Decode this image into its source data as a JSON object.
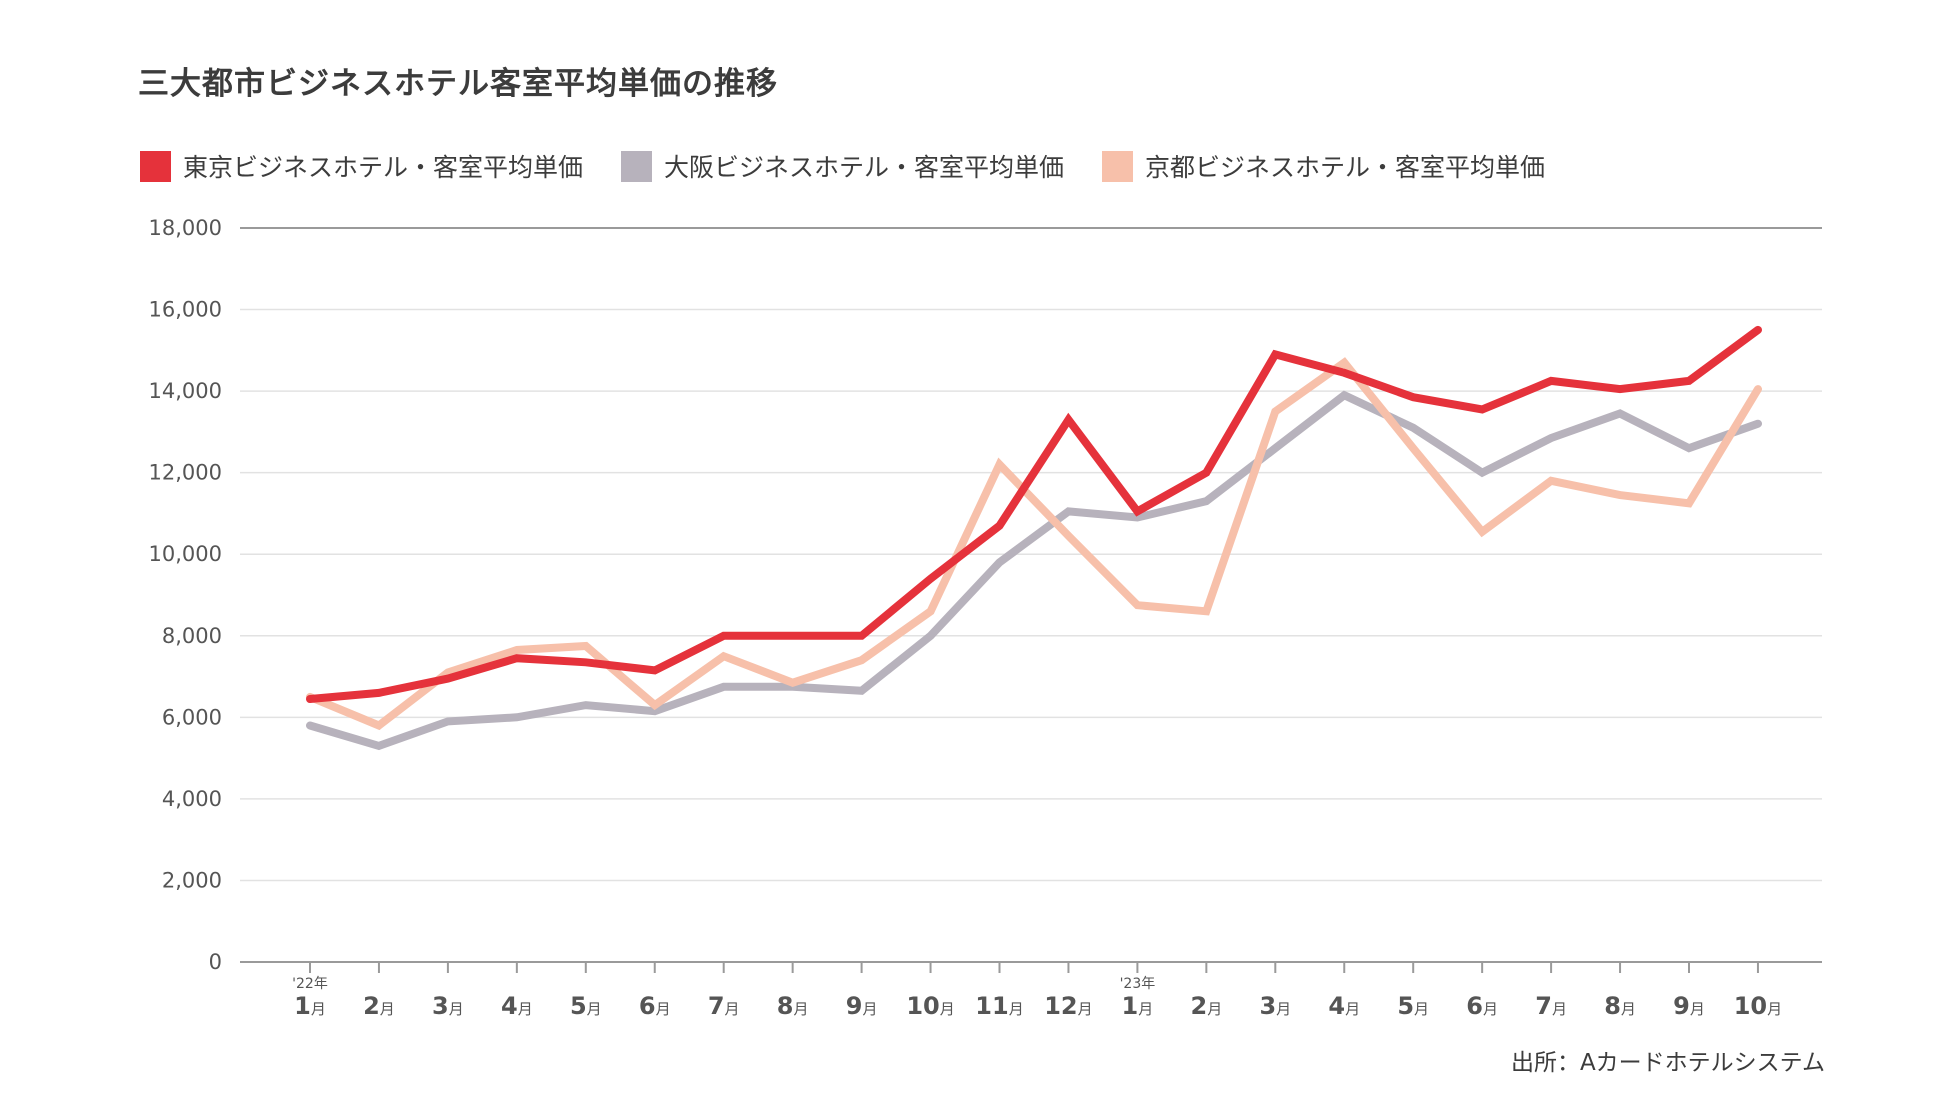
{
  "title": "三大都市ビジネスホテル客室平均単価の推移",
  "source": "出所：Aカードホテルシステム",
  "chart_data": {
    "type": "line",
    "title": "三大都市ビジネスホテル客室平均単価の推移",
    "ylim": [
      0,
      18000
    ],
    "yticks": [
      "0",
      "2,000",
      "4,000",
      "6,000",
      "8,000",
      "10,000",
      "12,000",
      "14,000",
      "16,000",
      "18,000"
    ],
    "legend_position": "top-left",
    "categories": [
      {
        "year": "'22年",
        "num": "1",
        "unit": "月"
      },
      {
        "year": "",
        "num": "2",
        "unit": "月"
      },
      {
        "year": "",
        "num": "3",
        "unit": "月"
      },
      {
        "year": "",
        "num": "4",
        "unit": "月"
      },
      {
        "year": "",
        "num": "5",
        "unit": "月"
      },
      {
        "year": "",
        "num": "6",
        "unit": "月"
      },
      {
        "year": "",
        "num": "7",
        "unit": "月"
      },
      {
        "year": "",
        "num": "8",
        "unit": "月"
      },
      {
        "year": "",
        "num": "9",
        "unit": "月"
      },
      {
        "year": "",
        "num": "10",
        "unit": "月"
      },
      {
        "year": "",
        "num": "11",
        "unit": "月"
      },
      {
        "year": "",
        "num": "12",
        "unit": "月"
      },
      {
        "year": "'23年",
        "num": "1",
        "unit": "月"
      },
      {
        "year": "",
        "num": "2",
        "unit": "月"
      },
      {
        "year": "",
        "num": "3",
        "unit": "月"
      },
      {
        "year": "",
        "num": "4",
        "unit": "月"
      },
      {
        "year": "",
        "num": "5",
        "unit": "月"
      },
      {
        "year": "",
        "num": "6",
        "unit": "月"
      },
      {
        "year": "",
        "num": "7",
        "unit": "月"
      },
      {
        "year": "",
        "num": "8",
        "unit": "月"
      },
      {
        "year": "",
        "num": "9",
        "unit": "月"
      },
      {
        "year": "",
        "num": "10",
        "unit": "月"
      }
    ],
    "series": [
      {
        "name": "大阪ビジネスホテル・客室平均単価",
        "color": "#b7b2bc",
        "values": [
          5800,
          5300,
          5900,
          6000,
          6300,
          6150,
          6750,
          6750,
          6650,
          8000,
          9800,
          11050,
          10900,
          11300,
          12600,
          13900,
          13100,
          12000,
          12850,
          13450,
          12600,
          13200
        ]
      },
      {
        "name": "京都ビジネスホテル・客室平均単価",
        "color": "#f7c0aa",
        "values": [
          6500,
          5800,
          7100,
          7650,
          7750,
          6300,
          7500,
          6850,
          7400,
          8600,
          12200,
          10450,
          8750,
          8600,
          13500,
          14700,
          12600,
          10550,
          11800,
          11450,
          11250,
          14050
        ]
      },
      {
        "name": "東京ビジネスホテル・客室平均単価",
        "color": "#e5323b",
        "values": [
          6450,
          6600,
          6950,
          7450,
          7350,
          7150,
          8000,
          8000,
          8000,
          9400,
          10700,
          13300,
          11050,
          12000,
          14900,
          14450,
          13850,
          13550,
          14250,
          14050,
          14250,
          15500
        ]
      }
    ],
    "legend_order": [
      2,
      0,
      1
    ]
  }
}
